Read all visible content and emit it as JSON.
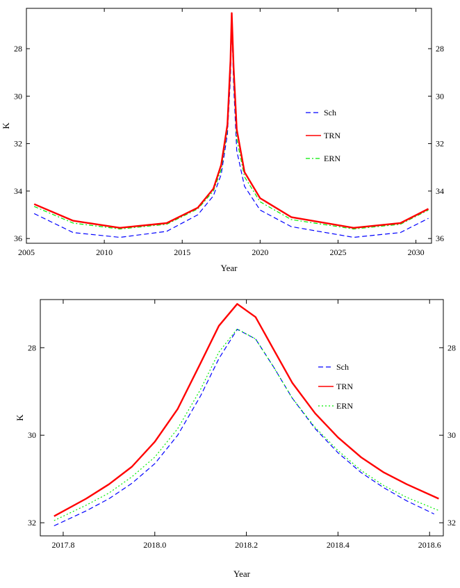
{
  "chart_data": [
    {
      "type": "line",
      "title": "",
      "xlabel": "Year",
      "ylabel": "K",
      "xlim": [
        2005,
        2031
      ],
      "ylim": [
        26.3,
        36.2
      ],
      "y_reversed": true,
      "x_ticks": [
        2005,
        2010,
        2015,
        2020,
        2025,
        2030
      ],
      "x_tick_labels": [
        "2005",
        "2010",
        "2015",
        "2020",
        "2025",
        "2030"
      ],
      "y_ticks": [
        28,
        30,
        32,
        34,
        36
      ],
      "y_tick_labels": [
        "28",
        "30",
        "32",
        "34",
        "36"
      ],
      "grid": false,
      "legend": "right",
      "series": [
        {
          "name": "Sch",
          "color": "#0000ff",
          "dash": "dashed",
          "x": [
            2005.5,
            2008,
            2011,
            2014,
            2016,
            2017,
            2017.5,
            2017.9,
            2018.1,
            2018.18,
            2018.3,
            2018.5,
            2019,
            2020,
            2022,
            2026,
            2029,
            2030.8
          ],
          "y": [
            34.95,
            35.75,
            35.95,
            35.7,
            35.0,
            34.2,
            33.3,
            31.6,
            29.2,
            26.9,
            29.5,
            32.3,
            33.8,
            34.8,
            35.5,
            35.95,
            35.75,
            35.15
          ]
        },
        {
          "name": "TRN",
          "color": "#ff0000",
          "dash": "solid",
          "x": [
            2005.5,
            2008,
            2011,
            2014,
            2016,
            2017,
            2017.5,
            2017.9,
            2018.1,
            2018.18,
            2018.3,
            2018.5,
            2019,
            2020,
            2022,
            2026,
            2029,
            2030.8
          ],
          "y": [
            34.55,
            35.25,
            35.55,
            35.35,
            34.7,
            33.9,
            32.9,
            31.2,
            28.5,
            26.5,
            28.8,
            31.4,
            33.2,
            34.3,
            35.1,
            35.55,
            35.35,
            34.75
          ]
        },
        {
          "name": "ERN",
          "color": "#00ee00",
          "dash": "dashdot",
          "x": [
            2005.5,
            2008,
            2011,
            2014,
            2016,
            2017,
            2017.5,
            2017.9,
            2018.1,
            2018.18,
            2018.3,
            2018.5,
            2019,
            2020,
            2022,
            2026,
            2029,
            2030.8
          ],
          "y": [
            34.65,
            35.35,
            35.6,
            35.4,
            34.75,
            34.0,
            33.1,
            31.4,
            28.9,
            26.8,
            29.2,
            31.8,
            33.4,
            34.45,
            35.2,
            35.6,
            35.4,
            34.8
          ]
        }
      ]
    },
    {
      "type": "line",
      "title": "",
      "xlabel": "Year",
      "ylabel": "K",
      "xlim": [
        2017.75,
        2018.63
      ],
      "ylim": [
        26.9,
        32.3
      ],
      "y_reversed": true,
      "x_ticks": [
        2017.8,
        2018.0,
        2018.2,
        2018.4,
        2018.6
      ],
      "x_tick_labels": [
        "2017.8",
        "2018.0",
        "2018.2",
        "2018.4",
        "2018.6"
      ],
      "y_ticks": [
        28,
        30,
        32
      ],
      "y_tick_labels": [
        "28",
        "30",
        "32"
      ],
      "grid": false,
      "legend": "right",
      "series": [
        {
          "name": "Sch",
          "color": "#0000ff",
          "dash": "dashed",
          "x": [
            2017.78,
            2017.85,
            2017.9,
            2017.95,
            2018.0,
            2018.05,
            2018.1,
            2018.14,
            2018.18,
            2018.22,
            2018.26,
            2018.3,
            2018.35,
            2018.4,
            2018.45,
            2018.5,
            2018.55,
            2018.61
          ],
          "y": [
            32.07,
            31.73,
            31.45,
            31.1,
            30.65,
            30.0,
            29.1,
            28.25,
            27.58,
            27.8,
            28.45,
            29.15,
            29.85,
            30.4,
            30.85,
            31.2,
            31.5,
            31.8
          ]
        },
        {
          "name": "TRN",
          "color": "#ff0000",
          "dash": "solid",
          "x": [
            2017.78,
            2017.85,
            2017.9,
            2017.95,
            2018.0,
            2018.05,
            2018.1,
            2018.14,
            2018.18,
            2018.22,
            2018.26,
            2018.3,
            2018.35,
            2018.4,
            2018.45,
            2018.5,
            2018.55,
            2018.62
          ],
          "y": [
            31.85,
            31.45,
            31.12,
            30.72,
            30.15,
            29.4,
            28.35,
            27.5,
            27.0,
            27.3,
            28.05,
            28.8,
            29.5,
            30.05,
            30.5,
            30.85,
            31.12,
            31.45
          ]
        },
        {
          "name": "ERN",
          "color": "#00ee00",
          "dash": "dotted",
          "x": [
            2017.78,
            2017.85,
            2017.9,
            2017.95,
            2018.0,
            2018.05,
            2018.1,
            2018.14,
            2018.18,
            2018.22,
            2018.26,
            2018.3,
            2018.35,
            2018.4,
            2018.45,
            2018.5,
            2018.55,
            2018.62
          ],
          "y": [
            31.95,
            31.6,
            31.32,
            30.95,
            30.5,
            29.85,
            28.95,
            28.1,
            27.57,
            27.8,
            28.45,
            29.15,
            29.82,
            30.35,
            30.8,
            31.15,
            31.42,
            31.72
          ]
        }
      ]
    }
  ]
}
